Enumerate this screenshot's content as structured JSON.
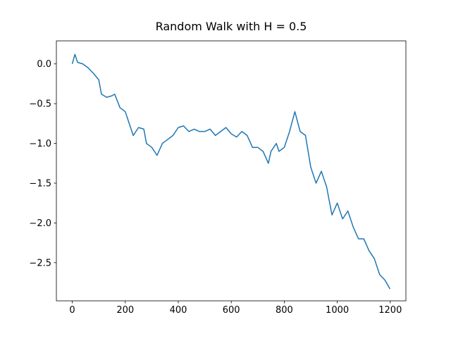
{
  "chart_data": {
    "type": "line",
    "title": "Random Walk with H = 0.5",
    "x": [
      0,
      10,
      20,
      40,
      60,
      80,
      100,
      110,
      130,
      150,
      160,
      180,
      200,
      210,
      230,
      250,
      270,
      280,
      300,
      320,
      340,
      360,
      380,
      400,
      420,
      440,
      460,
      480,
      500,
      520,
      540,
      560,
      580,
      600,
      620,
      640,
      660,
      680,
      700,
      720,
      740,
      750,
      770,
      780,
      800,
      820,
      840,
      860,
      880,
      900,
      920,
      940,
      960,
      980,
      1000,
      1020,
      1040,
      1060,
      1080,
      1100,
      1120,
      1140,
      1160,
      1180,
      1199
    ],
    "series": [
      {
        "color": "#1f77b4",
        "values": [
          0.0,
          0.12,
          0.02,
          0.0,
          -0.05,
          -0.12,
          -0.2,
          -0.38,
          -0.42,
          -0.4,
          -0.38,
          -0.55,
          -0.6,
          -0.7,
          -0.9,
          -0.8,
          -0.82,
          -1.0,
          -1.05,
          -1.15,
          -1.0,
          -0.95,
          -0.9,
          -0.8,
          -0.78,
          -0.85,
          -0.82,
          -0.85,
          -0.85,
          -0.82,
          -0.9,
          -0.85,
          -0.8,
          -0.88,
          -0.92,
          -0.85,
          -0.9,
          -1.05,
          -1.05,
          -1.1,
          -1.25,
          -1.1,
          -1.0,
          -1.1,
          -1.05,
          -0.85,
          -0.6,
          -0.85,
          -0.9,
          -1.3,
          -1.5,
          -1.35,
          -1.55,
          -1.9,
          -1.75,
          -1.95,
          -1.85,
          -2.05,
          -2.2,
          -2.2,
          -2.35,
          -2.45,
          -2.65,
          -2.72,
          -2.83
        ]
      }
    ],
    "xlim": [
      -60,
      1259
    ],
    "ylim": [
      -2.98,
      0.29
    ],
    "xticks": [
      0,
      200,
      400,
      600,
      800,
      1000,
      1200
    ],
    "yticks": [
      {
        "value": -2.5,
        "label": "−2.5"
      },
      {
        "value": -2.0,
        "label": "−2.0"
      },
      {
        "value": -1.5,
        "label": "−1.5"
      },
      {
        "value": -1.0,
        "label": "−1.0"
      },
      {
        "value": -0.5,
        "label": "−0.5"
      },
      {
        "value": 0.0,
        "label": "0.0"
      }
    ]
  }
}
